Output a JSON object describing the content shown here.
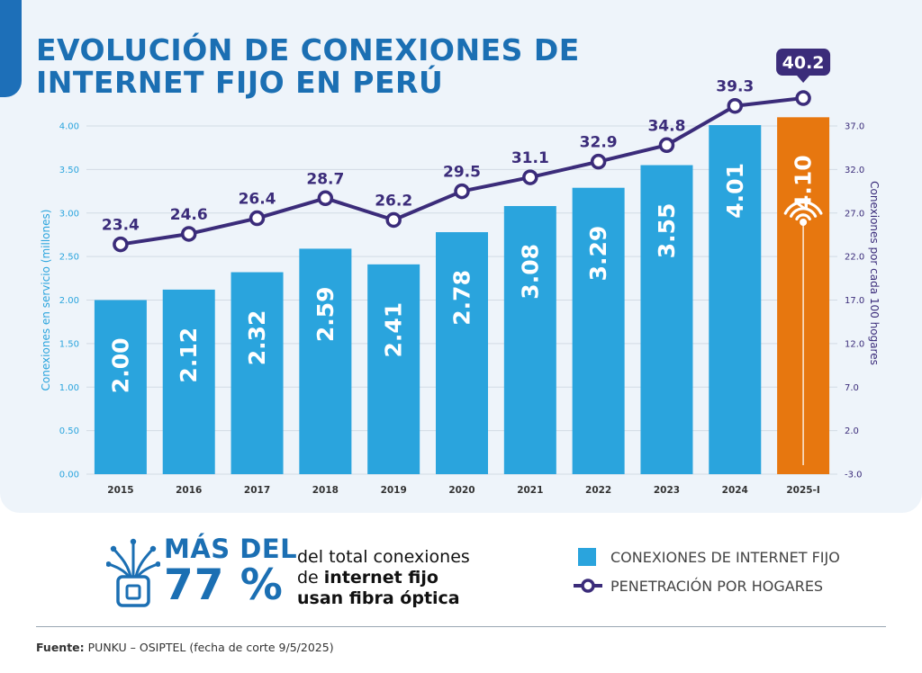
{
  "title": {
    "line1": "EVOLUCIÓN DE CONEXIONES DE",
    "line2": "INTERNET FIJO EN PERÚ"
  },
  "colors": {
    "bar": "#2aa4dd",
    "bar_highlight": "#e7770f",
    "line": "#3b2c7a",
    "title": "#1b6fb3",
    "panel": "#eef4fa"
  },
  "chart_data": {
    "type": "bar",
    "categories": [
      "2015",
      "2016",
      "2017",
      "2018",
      "2019",
      "2020",
      "2021",
      "2022",
      "2023",
      "2024",
      "2025-I"
    ],
    "series": [
      {
        "name": "CONEXIONES DE INTERNET FIJO",
        "type": "bar",
        "axis": "left",
        "values": [
          2.0,
          2.12,
          2.32,
          2.59,
          2.41,
          2.78,
          3.08,
          3.29,
          3.55,
          4.01,
          4.1
        ]
      },
      {
        "name": "PENETRACIÓN POR HOGARES",
        "type": "line",
        "axis": "right",
        "values": [
          23.4,
          24.6,
          26.4,
          28.7,
          26.2,
          29.5,
          31.1,
          32.9,
          34.8,
          39.3,
          40.2
        ]
      }
    ],
    "bar_labels": [
      "2.00",
      "2.12",
      "2.32",
      "2.59",
      "2.41",
      "2.78",
      "3.08",
      "3.29",
      "3.55",
      "4.01",
      "4.10"
    ],
    "line_labels": [
      "23.4",
      "24.6",
      "26.4",
      "28.7",
      "26.2",
      "29.5",
      "31.1",
      "32.9",
      "34.8",
      "39.3",
      "40.2"
    ],
    "highlight_index": 10,
    "ylabel": "Conexiones en servicio (millones)",
    "ylabel_right": "Conexiones por cada 100 hogares",
    "ylim": [
      0,
      4.0
    ],
    "ylim_right": [
      -3.0,
      37.0
    ],
    "yticks": [
      "0.00",
      "0.50",
      "1.00",
      "1.50",
      "2.00",
      "2.50",
      "3.00",
      "3.50",
      "4.00"
    ],
    "yticks_right": [
      "-3.0",
      "2.0",
      "7.0",
      "12.0",
      "17.0",
      "22.0",
      "27.0",
      "32.0",
      "37.0"
    ],
    "grid": true,
    "legend_position": "bottom-right"
  },
  "stat": {
    "big_line1": "MÁS DEL",
    "big_line2": "77 %",
    "text_line1": "del total conexiones",
    "text_line2_pre": "de ",
    "text_line2_bold": "internet fijo",
    "text_line3": "usan fibra óptica",
    "icon": "fiber-optic-icon"
  },
  "legend": {
    "bars": "CONEXIONES DE INTERNET FIJO",
    "line": "PENETRACIÓN POR HOGARES"
  },
  "source": {
    "label": "Fuente:",
    "text": " PUNKU – OSIPTEL (fecha de corte 9/5/2025)"
  }
}
